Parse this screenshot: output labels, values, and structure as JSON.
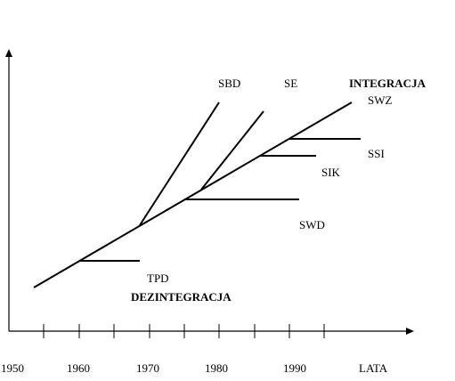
{
  "axis": {
    "x_ticks": [
      "1950",
      "1960",
      "1970",
      "1980",
      "1990"
    ],
    "x_label": "LATA"
  },
  "phases": {
    "integration": "INTEGRACJA",
    "disintegration": "DEZINTEGRACJA"
  },
  "systems": {
    "sbd": "SBD",
    "se": "SE",
    "swz": "SWZ",
    "ssi": "SSI",
    "sik": "SIK",
    "swd": "SWD",
    "tpd": "TPD"
  }
}
